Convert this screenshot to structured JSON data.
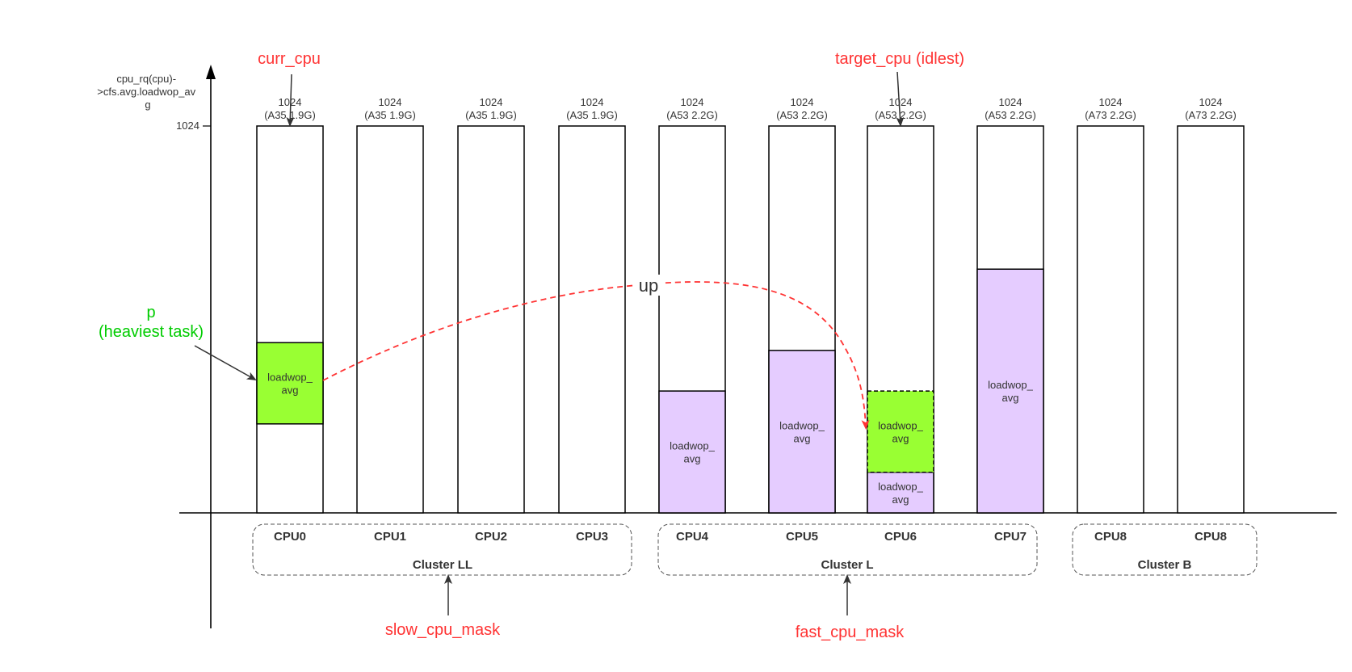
{
  "y_axis": {
    "label": [
      "cpu_rq(cpu)-",
      ">cfs.avg.loadwop_av",
      "g"
    ],
    "tick_label": "1024"
  },
  "cpus": [
    {
      "name": "CPU0",
      "cap": "1024",
      "desc": "(A35 1.9G)",
      "loads": [
        {
          "label": [
            "loadwop_",
            "avg"
          ],
          "kind": "task",
          "from": 0.23,
          "to": 0.44,
          "dashed": false
        }
      ]
    },
    {
      "name": "CPU1",
      "cap": "1024",
      "desc": "(A35 1.9G)",
      "loads": []
    },
    {
      "name": "CPU2",
      "cap": "1024",
      "desc": "(A35 1.9G)",
      "loads": []
    },
    {
      "name": "CPU3",
      "cap": "1024",
      "desc": "(A35 1.9G)",
      "loads": []
    },
    {
      "name": "CPU4",
      "cap": "1024",
      "desc": "(A53 2.2G)",
      "loads": [
        {
          "label": [
            "loadwop_",
            "avg"
          ],
          "kind": "rq",
          "from": 0,
          "to": 0.315,
          "dashed": false
        }
      ]
    },
    {
      "name": "CPU5",
      "cap": "1024",
      "desc": "(A53 2.2G)",
      "loads": [
        {
          "label": [
            "loadwop_",
            "avg"
          ],
          "kind": "rq",
          "from": 0,
          "to": 0.42,
          "dashed": false
        }
      ]
    },
    {
      "name": "CPU6",
      "cap": "1024",
      "desc": "(A53 2.2G)",
      "loads": [
        {
          "label": [
            "loadwop_",
            "avg"
          ],
          "kind": "rq",
          "from": 0,
          "to": 0.105,
          "dashed": false
        },
        {
          "label": [
            "loadwop_",
            "avg"
          ],
          "kind": "task",
          "from": 0.105,
          "to": 0.315,
          "dashed": true
        }
      ]
    },
    {
      "name": "CPU7",
      "cap": "1024",
      "desc": "(A53 2.2G)",
      "loads": [
        {
          "label": [
            "loadwop_",
            "avg"
          ],
          "kind": "rq",
          "from": 0,
          "to": 0.63,
          "dashed": false
        }
      ]
    },
    {
      "name": "CPU8",
      "cap": "1024",
      "desc": "(A73 2.2G)",
      "loads": []
    },
    {
      "name": "CPU8",
      "cap": "1024",
      "desc": "(A73 2.2G)",
      "loads": []
    }
  ],
  "clusters": [
    {
      "name": "Cluster LL"
    },
    {
      "name": "Cluster L"
    },
    {
      "name": "Cluster B"
    }
  ],
  "annotations": {
    "curr_cpu": "curr_cpu",
    "target_cpu": "target_cpu (idlest)",
    "task_p": "p",
    "task_p_desc": "(heaviest task)",
    "migration": "up",
    "slow_mask": "slow_cpu_mask",
    "fast_mask": "fast_cpu_mask"
  },
  "colors": {
    "task": "#99ff33",
    "rq": "#e5ccff",
    "annotation": "#ff3333",
    "task_text": "#00cc00",
    "stroke": "#000000",
    "text": "#333333"
  }
}
